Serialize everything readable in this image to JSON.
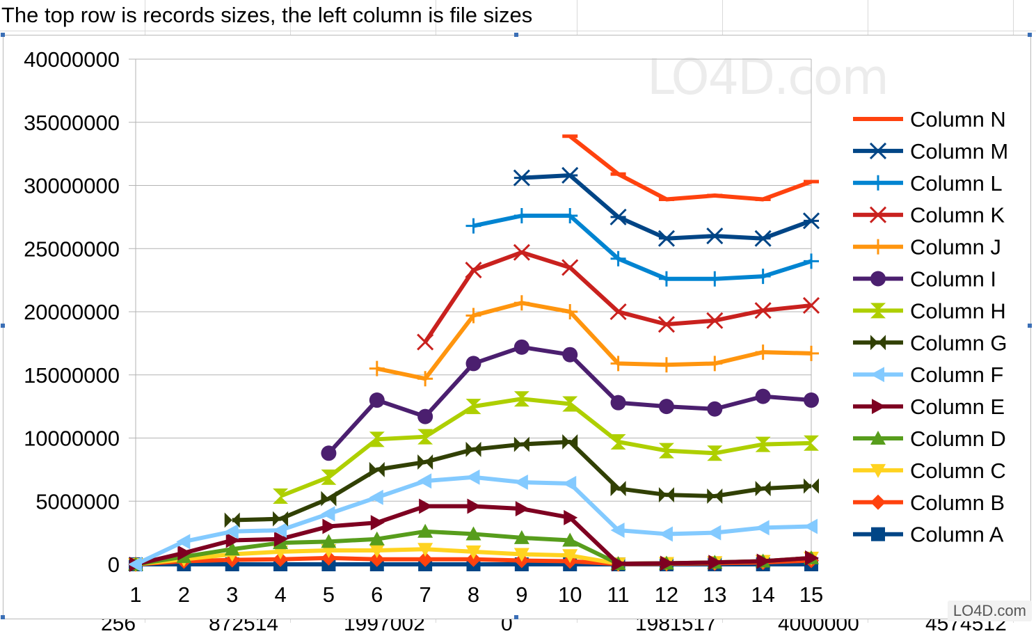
{
  "sheet": {
    "cell_text": "The top row is records sizes, the left column is file sizes",
    "bottom_row": [
      "256",
      "872514",
      "1997002",
      "0",
      "1981517",
      "4000000",
      "4574512"
    ]
  },
  "watermark": {
    "top": "LO4D.com",
    "bottom": "LO4D.com"
  },
  "chart_data": {
    "type": "line",
    "x": [
      1,
      2,
      3,
      4,
      5,
      6,
      7,
      8,
      9,
      10,
      11,
      12,
      13,
      14,
      15
    ],
    "ylim": [
      0,
      40000000
    ],
    "yticks": [
      "0",
      "5000000",
      "10000000",
      "15000000",
      "20000000",
      "25000000",
      "30000000",
      "35000000",
      "40000000"
    ],
    "xticks": [
      "1",
      "2",
      "3",
      "4",
      "5",
      "6",
      "7",
      "8",
      "9",
      "10",
      "11",
      "12",
      "13",
      "14",
      "15"
    ],
    "grid": "horizontal",
    "legend_position": "right",
    "series": [
      {
        "name": "Column N",
        "color": "#ff420e",
        "marker": "dash",
        "values": [
          null,
          null,
          null,
          null,
          null,
          null,
          null,
          null,
          null,
          33900000,
          30900000,
          28900000,
          29200000,
          28900000,
          30300000
        ]
      },
      {
        "name": "Column M",
        "color": "#004586",
        "marker": "star",
        "values": [
          null,
          null,
          null,
          null,
          null,
          null,
          null,
          null,
          30600000,
          30800000,
          27500000,
          25800000,
          26000000,
          25800000,
          27200000
        ]
      },
      {
        "name": "Column L",
        "color": "#0084d1",
        "marker": "plus",
        "values": [
          null,
          null,
          null,
          null,
          null,
          null,
          null,
          26800000,
          27600000,
          27600000,
          24200000,
          22600000,
          22600000,
          22800000,
          24000000
        ]
      },
      {
        "name": "Column K",
        "color": "#c9211e",
        "marker": "x",
        "values": [
          null,
          null,
          null,
          null,
          null,
          null,
          17600000,
          23300000,
          24700000,
          23500000,
          20000000,
          19000000,
          19300000,
          20100000,
          20500000
        ]
      },
      {
        "name": "Column J",
        "color": "#ff950e",
        "marker": "plus",
        "values": [
          null,
          null,
          null,
          null,
          null,
          15500000,
          14700000,
          19700000,
          20700000,
          20000000,
          15900000,
          15800000,
          15900000,
          16800000,
          16700000
        ]
      },
      {
        "name": "Column I",
        "color": "#4b1f6f",
        "marker": "circle",
        "values": [
          null,
          null,
          null,
          null,
          8800000,
          13000000,
          11700000,
          15900000,
          17200000,
          16600000,
          12800000,
          12500000,
          12300000,
          13300000,
          13000000
        ]
      },
      {
        "name": "Column H",
        "color": "#aecf00",
        "marker": "hourglass",
        "values": [
          null,
          null,
          null,
          5400000,
          6900000,
          9900000,
          10100000,
          12500000,
          13100000,
          12700000,
          9700000,
          9000000,
          8800000,
          9500000,
          9600000
        ]
      },
      {
        "name": "Column G",
        "color": "#314004",
        "marker": "bowtie",
        "values": [
          null,
          null,
          3500000,
          3600000,
          5200000,
          7500000,
          8100000,
          9100000,
          9500000,
          9700000,
          6000000,
          5500000,
          5400000,
          6000000,
          6200000
        ]
      },
      {
        "name": "Column F",
        "color": "#83caff",
        "marker": "tri-left",
        "values": [
          0,
          1800000,
          2600000,
          2700000,
          4000000,
          5300000,
          6600000,
          6900000,
          6500000,
          6400000,
          2700000,
          2400000,
          2500000,
          2900000,
          3000000
        ]
      },
      {
        "name": "Column E",
        "color": "#7e0021",
        "marker": "tri-right",
        "values": [
          0,
          900000,
          1900000,
          2000000,
          3000000,
          3300000,
          4600000,
          4600000,
          4400000,
          3700000,
          50000,
          80000,
          150000,
          250000,
          500000
        ]
      },
      {
        "name": "Column D",
        "color": "#579d1c",
        "marker": "tri-up",
        "values": [
          0,
          600000,
          1200000,
          1700000,
          1800000,
          2000000,
          2600000,
          2400000,
          2100000,
          1900000,
          50000,
          80000,
          150000,
          250000,
          500000
        ]
      },
      {
        "name": "Column C",
        "color": "#ffd320",
        "marker": "tri-down",
        "values": [
          0,
          400000,
          800000,
          1000000,
          1100000,
          1100000,
          1200000,
          1000000,
          800000,
          700000,
          50000,
          80000,
          150000,
          250000,
          500000
        ]
      },
      {
        "name": "Column B",
        "color": "#ff420e",
        "marker": "diamond",
        "values": [
          0,
          250000,
          350000,
          400000,
          500000,
          400000,
          400000,
          400000,
          300000,
          250000,
          20000,
          40000,
          80000,
          150000,
          300000
        ]
      },
      {
        "name": "Column A",
        "color": "#004586",
        "marker": "square",
        "values": [
          0,
          0,
          0,
          0,
          0,
          0,
          0,
          0,
          0,
          0,
          0,
          0,
          0,
          0,
          0
        ]
      }
    ]
  }
}
